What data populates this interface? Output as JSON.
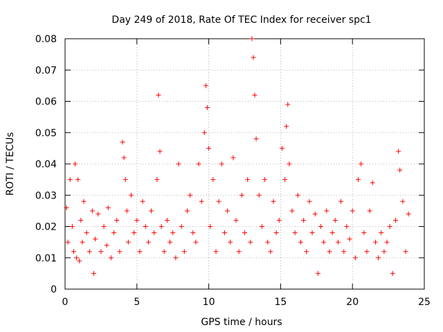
{
  "chart_data": {
    "type": "scatter",
    "title": "Day 249 of 2018, Rate Of TEC Index for receiver spc1",
    "xlabel": "GPS time / hours",
    "ylabel": "ROTI / TECUs",
    "xlim": [
      0,
      25
    ],
    "ylim": [
      0,
      0.08
    ],
    "x_ticks": [
      0,
      5,
      10,
      15,
      20,
      25
    ],
    "y_ticks": [
      0,
      0.01,
      0.02,
      0.03,
      0.04,
      0.05,
      0.06,
      0.07,
      0.08
    ],
    "grid": true,
    "marker": "+",
    "color": "#ff0000",
    "series": [
      {
        "x": [
          0.1,
          0.2,
          0.35,
          0.5,
          0.6,
          0.7,
          0.8,
          0.9,
          1.0,
          1.1,
          1.2,
          1.3,
          1.5,
          1.7,
          1.9,
          2.0,
          2.1,
          2.3,
          2.5,
          2.7,
          2.9,
          3.0,
          3.2,
          3.4,
          3.6,
          3.8,
          4.0,
          4.1,
          4.2,
          4.3,
          4.4,
          4.6,
          4.8,
          5.0,
          5.2,
          5.4,
          5.6,
          5.8,
          6.0,
          6.2,
          6.4,
          6.5,
          6.6,
          6.7,
          6.9,
          7.1,
          7.3,
          7.5,
          7.7,
          7.9,
          8.1,
          8.3,
          8.5,
          8.7,
          8.9,
          9.1,
          9.3,
          9.5,
          9.7,
          9.8,
          9.9,
          10.0,
          10.1,
          10.3,
          10.5,
          10.7,
          10.9,
          11.1,
          11.3,
          11.5,
          11.7,
          11.9,
          12.1,
          12.3,
          12.5,
          12.7,
          12.9,
          13.0,
          13.1,
          13.2,
          13.3,
          13.5,
          13.7,
          13.9,
          14.1,
          14.3,
          14.5,
          14.7,
          14.9,
          15.1,
          15.3,
          15.4,
          15.5,
          15.6,
          15.8,
          16.0,
          16.2,
          16.4,
          16.6,
          16.8,
          17.0,
          17.2,
          17.4,
          17.6,
          17.8,
          18.0,
          18.2,
          18.4,
          18.6,
          18.8,
          19.0,
          19.2,
          19.4,
          19.6,
          19.8,
          20.0,
          20.2,
          20.4,
          20.6,
          20.8,
          21.0,
          21.2,
          21.4,
          21.6,
          21.8,
          22.0,
          22.2,
          22.4,
          22.6,
          22.8,
          23.0,
          23.2,
          23.3,
          23.5,
          23.7,
          23.9
        ],
        "y": [
          0.026,
          0.015,
          0.035,
          0.02,
          0.012,
          0.04,
          0.01,
          0.035,
          0.009,
          0.022,
          0.015,
          0.028,
          0.018,
          0.012,
          0.025,
          0.005,
          0.016,
          0.024,
          0.012,
          0.02,
          0.014,
          0.026,
          0.01,
          0.018,
          0.022,
          0.012,
          0.047,
          0.042,
          0.035,
          0.025,
          0.015,
          0.03,
          0.018,
          0.022,
          0.012,
          0.028,
          0.02,
          0.015,
          0.025,
          0.018,
          0.035,
          0.062,
          0.044,
          0.02,
          0.012,
          0.022,
          0.015,
          0.018,
          0.01,
          0.04,
          0.02,
          0.012,
          0.025,
          0.03,
          0.018,
          0.015,
          0.04,
          0.028,
          0.05,
          0.065,
          0.058,
          0.045,
          0.02,
          0.035,
          0.012,
          0.028,
          0.04,
          0.018,
          0.025,
          0.015,
          0.042,
          0.022,
          0.012,
          0.03,
          0.018,
          0.035,
          0.015,
          0.08,
          0.074,
          0.062,
          0.048,
          0.03,
          0.02,
          0.035,
          0.015,
          0.012,
          0.028,
          0.018,
          0.022,
          0.045,
          0.035,
          0.052,
          0.059,
          0.04,
          0.025,
          0.018,
          0.03,
          0.015,
          0.022,
          0.012,
          0.028,
          0.018,
          0.024,
          0.005,
          0.02,
          0.015,
          0.025,
          0.012,
          0.018,
          0.022,
          0.015,
          0.028,
          0.012,
          0.02,
          0.016,
          0.025,
          0.01,
          0.035,
          0.04,
          0.018,
          0.012,
          0.025,
          0.034,
          0.015,
          0.01,
          0.018,
          0.012,
          0.015,
          0.02,
          0.005,
          0.022,
          0.044,
          0.038,
          0.028,
          0.012,
          0.024
        ]
      }
    ]
  }
}
